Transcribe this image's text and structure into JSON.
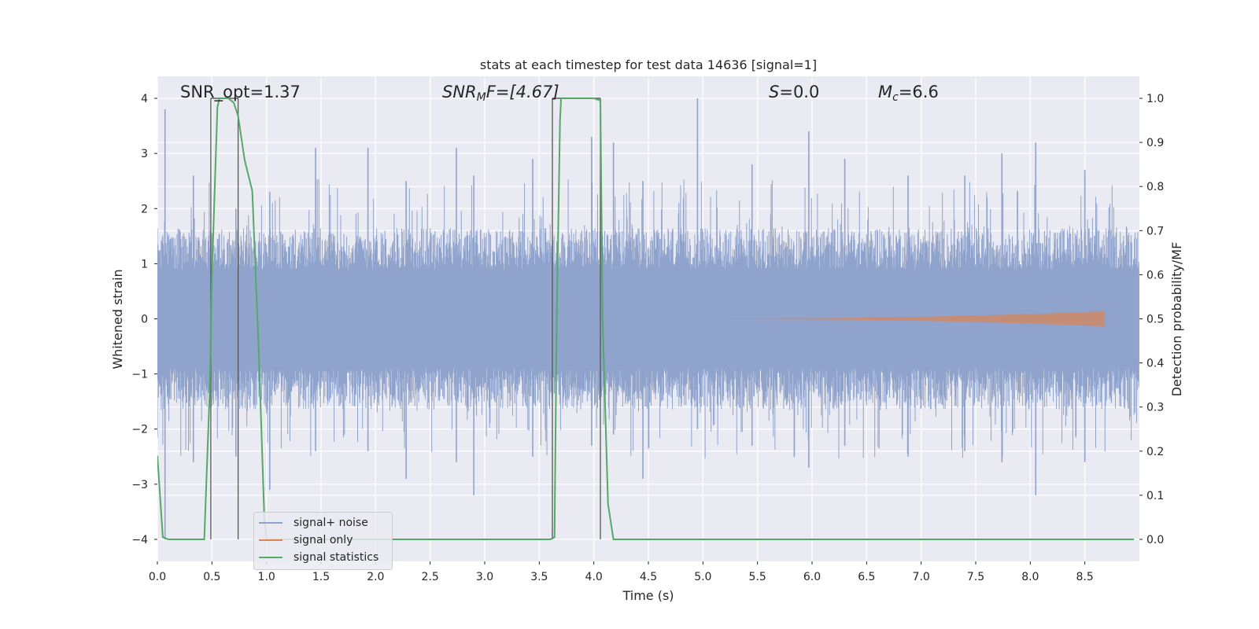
{
  "chart_data": {
    "type": "line",
    "title": "stats at each timestep for test data 14636 [signal=1]",
    "xlabel": "Time (s)",
    "ylabel_left": "Whitened strain",
    "ylabel_right": "Detection probability/MF",
    "xlim": [
      0,
      9.0
    ],
    "ylim_left": [
      -4.4,
      4.4
    ],
    "ylim_right": [
      -0.05,
      1.05
    ],
    "x_ticks": [
      "0.0",
      "0.5",
      "1.0",
      "1.5",
      "2.0",
      "2.5",
      "3.0",
      "3.5",
      "4.0",
      "4.5",
      "5.0",
      "5.5",
      "6.0",
      "6.5",
      "7.0",
      "7.5",
      "8.0",
      "8.5"
    ],
    "y_ticks_left": [
      "−4",
      "−3",
      "−2",
      "−1",
      "0",
      "1",
      "2",
      "3",
      "4"
    ],
    "y_ticks_right": [
      "0.0",
      "0.1",
      "0.2",
      "0.3",
      "0.4",
      "0.5",
      "0.6",
      "0.7",
      "0.8",
      "0.9",
      "1.0"
    ],
    "grid": true,
    "legend_position": "lower-left",
    "annotations": {
      "snr_opt": "SNR_opt=1.37",
      "snr_mf_main": "SNR",
      "snr_mf_sub": "M",
      "snr_mf_rest": "F=[4.67]",
      "s_italic": "S",
      "s_rest": "=0.0",
      "mc_main": "M",
      "mc_sub": "c",
      "mc_rest": "=6.6"
    },
    "vertical_lines_x": [
      0.49,
      0.74,
      3.62,
      4.06
    ],
    "series": [
      {
        "name": "signal+ noise",
        "color": "#8fa3cc",
        "axis": "left",
        "band_core": [
          -0.8,
          0.8
        ],
        "envelope_spikes": [
          [
            0.07,
            3.8,
            -4.0
          ],
          [
            0.33,
            2.6,
            -2.6
          ],
          [
            0.72,
            2.0,
            -2.5
          ],
          [
            1.03,
            2.3,
            -3.1
          ],
          [
            1.45,
            3.1,
            -2.4
          ],
          [
            1.93,
            3.1,
            -2.4
          ],
          [
            2.28,
            2.5,
            -2.9
          ],
          [
            2.74,
            3.1,
            -2.6
          ],
          [
            2.9,
            2.6,
            -3.2
          ],
          [
            3.44,
            2.9,
            -2.5
          ],
          [
            3.98,
            3.3,
            -2.3
          ],
          [
            4.18,
            3.2,
            -2.1
          ],
          [
            4.45,
            2.5,
            -2.9
          ],
          [
            4.95,
            4.0,
            -2.0
          ],
          [
            5.45,
            2.8,
            -2.3
          ],
          [
            5.97,
            3.4,
            -2.7
          ],
          [
            6.3,
            2.9,
            -2.3
          ],
          [
            6.88,
            2.6,
            -2.5
          ],
          [
            7.4,
            2.6,
            -2.4
          ],
          [
            7.74,
            3.0,
            -2.6
          ],
          [
            8.05,
            3.2,
            -3.2
          ],
          [
            8.5,
            2.7,
            -2.6
          ]
        ]
      },
      {
        "name": "signal only",
        "color": "#dd8452",
        "axis": "left",
        "chirp_start": 5.2,
        "chirp_end": 8.68,
        "max_amplitude": 0.13
      },
      {
        "name": "signal statistics",
        "color": "#55a868",
        "axis": "right",
        "x": [
          0.0,
          0.05,
          0.1,
          0.15,
          0.2,
          0.3,
          0.35,
          0.43,
          0.48,
          0.5,
          0.55,
          0.57,
          0.6,
          0.65,
          0.7,
          0.74,
          0.8,
          0.87,
          0.93,
          0.98,
          1.0,
          1.5,
          2.0,
          2.5,
          3.0,
          3.5,
          3.6,
          3.64,
          3.66,
          3.69,
          3.7,
          4.0,
          4.06,
          4.08,
          4.13,
          4.18,
          4.5,
          5.0,
          5.5,
          6.0,
          6.5,
          7.0,
          7.5,
          8.0,
          8.5,
          8.95
        ],
        "y": [
          0.19,
          0.005,
          0.0,
          0.0,
          0.0,
          0.0,
          0.0,
          0.0,
          0.34,
          0.6,
          0.98,
          1.0,
          1.0,
          1.0,
          0.99,
          0.96,
          0.86,
          0.79,
          0.42,
          0.05,
          0.0,
          0.0,
          0.0,
          0.0,
          0.0,
          0.0,
          0.0,
          0.005,
          0.5,
          0.95,
          1.0,
          1.0,
          0.995,
          0.5,
          0.08,
          0.0,
          0.0,
          0.0,
          0.0,
          0.0,
          0.0,
          0.0,
          0.0,
          0.0,
          0.0,
          0.0
        ]
      }
    ]
  },
  "legend": {
    "items": [
      {
        "label": "signal+ noise",
        "color": "#8fa3cc"
      },
      {
        "label": "signal only",
        "color": "#dd8452"
      },
      {
        "label": "signal statistics",
        "color": "#55a868"
      }
    ]
  }
}
